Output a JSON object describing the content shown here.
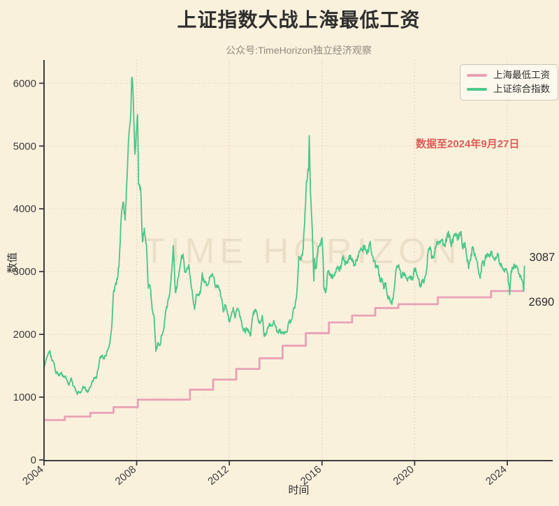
{
  "chart_data": {
    "type": "line",
    "title": "上证指数大战上海最低工资",
    "subtitle": "公众号:TimeHorizon独立经济观察",
    "xlabel": "时间",
    "ylabel": "数值",
    "x_ticks": [
      2004,
      2008,
      2012,
      2016,
      2020,
      2024
    ],
    "y_ticks": [
      0,
      1000,
      2000,
      3000,
      4000,
      5000,
      6000
    ],
    "xlim": [
      2004,
      2026
    ],
    "ylim": [
      0,
      6350
    ],
    "grid": "dotted",
    "legend_position": "upper right",
    "annotation": "数据至2024年9月27日",
    "watermark": "TIME HORIZON",
    "end_labels": {
      "index": "3087",
      "wage": "2690"
    },
    "series": [
      {
        "id": "wage",
        "name": "上海最低工资",
        "style": "step-after",
        "color": "#e8a1b4",
        "points": [
          [
            2004.0,
            635
          ],
          [
            2004.9,
            690
          ],
          [
            2006.0,
            750
          ],
          [
            2007.0,
            840
          ],
          [
            2008.05,
            960
          ],
          [
            2010.3,
            1120
          ],
          [
            2011.3,
            1280
          ],
          [
            2012.3,
            1450
          ],
          [
            2013.3,
            1620
          ],
          [
            2014.3,
            1820
          ],
          [
            2015.3,
            2020
          ],
          [
            2016.3,
            2190
          ],
          [
            2017.3,
            2300
          ],
          [
            2018.3,
            2420
          ],
          [
            2019.3,
            2480
          ],
          [
            2021.0,
            2590
          ],
          [
            2023.3,
            2690
          ],
          [
            2024.74,
            2690
          ]
        ]
      },
      {
        "id": "index",
        "name": "上证综合指数",
        "style": "line",
        "color": "#4dc88b",
        "points": [
          [
            2004.0,
            1497
          ],
          [
            2004.08,
            1590
          ],
          [
            2004.17,
            1675
          ],
          [
            2004.25,
            1741
          ],
          [
            2004.33,
            1595
          ],
          [
            2004.42,
            1555
          ],
          [
            2004.5,
            1399
          ],
          [
            2004.58,
            1386
          ],
          [
            2004.67,
            1342
          ],
          [
            2004.75,
            1396
          ],
          [
            2004.83,
            1320
          ],
          [
            2004.92,
            1340
          ],
          [
            2005.0,
            1266
          ],
          [
            2005.08,
            1191
          ],
          [
            2005.17,
            1306
          ],
          [
            2005.25,
            1181
          ],
          [
            2005.33,
            1159
          ],
          [
            2005.42,
            1060
          ],
          [
            2005.5,
            1080
          ],
          [
            2005.58,
            1083
          ],
          [
            2005.67,
            1162
          ],
          [
            2005.75,
            1155
          ],
          [
            2005.83,
            1092
          ],
          [
            2005.92,
            1099
          ],
          [
            2006.0,
            1161
          ],
          [
            2006.08,
            1258
          ],
          [
            2006.17,
            1299
          ],
          [
            2006.25,
            1298
          ],
          [
            2006.33,
            1440
          ],
          [
            2006.42,
            1641
          ],
          [
            2006.5,
            1672
          ],
          [
            2006.58,
            1612
          ],
          [
            2006.67,
            1658
          ],
          [
            2006.75,
            1752
          ],
          [
            2006.83,
            1837
          ],
          [
            2006.92,
            2099
          ],
          [
            2007.0,
            2675
          ],
          [
            2007.08,
            2786
          ],
          [
            2007.17,
            2881
          ],
          [
            2007.25,
            3183
          ],
          [
            2007.33,
            3841
          ],
          [
            2007.42,
            4109
          ],
          [
            2007.5,
            3820
          ],
          [
            2007.58,
            4471
          ],
          [
            2007.67,
            5218
          ],
          [
            2007.75,
            5552
          ],
          [
            2007.79,
            6092
          ],
          [
            2007.83,
            5954
          ],
          [
            2007.92,
            4871
          ],
          [
            2008.0,
            5262
          ],
          [
            2008.04,
            5500
          ],
          [
            2008.08,
            4383
          ],
          [
            2008.17,
            4348
          ],
          [
            2008.25,
            3473
          ],
          [
            2008.33,
            3693
          ],
          [
            2008.42,
            3433
          ],
          [
            2008.5,
            2736
          ],
          [
            2008.58,
            2775
          ],
          [
            2008.67,
            2397
          ],
          [
            2008.75,
            2294
          ],
          [
            2008.83,
            1729
          ],
          [
            2008.92,
            1871
          ],
          [
            2009.0,
            1821
          ],
          [
            2009.08,
            1991
          ],
          [
            2009.17,
            2083
          ],
          [
            2009.25,
            2373
          ],
          [
            2009.33,
            2478
          ],
          [
            2009.42,
            2633
          ],
          [
            2009.5,
            2959
          ],
          [
            2009.58,
            3412
          ],
          [
            2009.67,
            2668
          ],
          [
            2009.75,
            2779
          ],
          [
            2009.83,
            2995
          ],
          [
            2009.92,
            3195
          ],
          [
            2010.0,
            3277
          ],
          [
            2010.08,
            2989
          ],
          [
            2010.17,
            3052
          ],
          [
            2010.25,
            3109
          ],
          [
            2010.33,
            2871
          ],
          [
            2010.42,
            2592
          ],
          [
            2010.5,
            2398
          ],
          [
            2010.58,
            2638
          ],
          [
            2010.67,
            2639
          ],
          [
            2010.75,
            2656
          ],
          [
            2010.83,
            2979
          ],
          [
            2010.92,
            2820
          ],
          [
            2011.0,
            2808
          ],
          [
            2011.08,
            2790
          ],
          [
            2011.17,
            2905
          ],
          [
            2011.25,
            2928
          ],
          [
            2011.33,
            2911
          ],
          [
            2011.42,
            2743
          ],
          [
            2011.5,
            2762
          ],
          [
            2011.58,
            2701
          ],
          [
            2011.67,
            2567
          ],
          [
            2011.75,
            2359
          ],
          [
            2011.83,
            2468
          ],
          [
            2011.92,
            2333
          ],
          [
            2012.0,
            2199
          ],
          [
            2012.08,
            2293
          ],
          [
            2012.17,
            2428
          ],
          [
            2012.25,
            2263
          ],
          [
            2012.33,
            2396
          ],
          [
            2012.42,
            2372
          ],
          [
            2012.5,
            2225
          ],
          [
            2012.58,
            2103
          ],
          [
            2012.67,
            2047
          ],
          [
            2012.75,
            2086
          ],
          [
            2012.83,
            2068
          ],
          [
            2012.92,
            1980
          ],
          [
            2013.0,
            2269
          ],
          [
            2013.08,
            2385
          ],
          [
            2013.17,
            2365
          ],
          [
            2013.25,
            2237
          ],
          [
            2013.33,
            2178
          ],
          [
            2013.42,
            2301
          ],
          [
            2013.5,
            1979
          ],
          [
            2013.58,
            1994
          ],
          [
            2013.67,
            2098
          ],
          [
            2013.75,
            2175
          ],
          [
            2013.83,
            2141
          ],
          [
            2013.92,
            2221
          ],
          [
            2014.0,
            2116
          ],
          [
            2014.08,
            2033
          ],
          [
            2014.17,
            2056
          ],
          [
            2014.25,
            2033
          ],
          [
            2014.33,
            2026
          ],
          [
            2014.42,
            2039
          ],
          [
            2014.5,
            2048
          ],
          [
            2014.58,
            2202
          ],
          [
            2014.67,
            2217
          ],
          [
            2014.75,
            2364
          ],
          [
            2014.83,
            2420
          ],
          [
            2014.92,
            2683
          ],
          [
            2015.0,
            3235
          ],
          [
            2015.08,
            3210
          ],
          [
            2015.17,
            3310
          ],
          [
            2015.25,
            3748
          ],
          [
            2015.33,
            4442
          ],
          [
            2015.42,
            4612
          ],
          [
            2015.45,
            5166
          ],
          [
            2015.5,
            4277
          ],
          [
            2015.58,
            3664
          ],
          [
            2015.65,
            2851
          ],
          [
            2015.67,
            3206
          ],
          [
            2015.75,
            3053
          ],
          [
            2015.83,
            3383
          ],
          [
            2015.92,
            3445
          ],
          [
            2016.0,
            3539
          ],
          [
            2016.04,
            3296
          ],
          [
            2016.08,
            2738
          ],
          [
            2016.17,
            2688
          ],
          [
            2016.25,
            3004
          ],
          [
            2016.33,
            2938
          ],
          [
            2016.42,
            2917
          ],
          [
            2016.5,
            2930
          ],
          [
            2016.58,
            2979
          ],
          [
            2016.67,
            3085
          ],
          [
            2016.75,
            3005
          ],
          [
            2016.83,
            3100
          ],
          [
            2016.92,
            3250
          ],
          [
            2017.0,
            3104
          ],
          [
            2017.08,
            3159
          ],
          [
            2017.17,
            3242
          ],
          [
            2017.25,
            3223
          ],
          [
            2017.33,
            3155
          ],
          [
            2017.42,
            3117
          ],
          [
            2017.5,
            3192
          ],
          [
            2017.58,
            3273
          ],
          [
            2017.67,
            3361
          ],
          [
            2017.75,
            3349
          ],
          [
            2017.83,
            3393
          ],
          [
            2017.92,
            3317
          ],
          [
            2018.0,
            3307
          ],
          [
            2018.08,
            3481
          ],
          [
            2018.17,
            3259
          ],
          [
            2018.25,
            3169
          ],
          [
            2018.33,
            3082
          ],
          [
            2018.42,
            3095
          ],
          [
            2018.5,
            2847
          ],
          [
            2018.58,
            2876
          ],
          [
            2018.67,
            2725
          ],
          [
            2018.75,
            2821
          ],
          [
            2018.83,
            2603
          ],
          [
            2018.92,
            2588
          ],
          [
            2019.0,
            2494
          ],
          [
            2019.08,
            2585
          ],
          [
            2019.17,
            2941
          ],
          [
            2019.25,
            3091
          ],
          [
            2019.33,
            3078
          ],
          [
            2019.42,
            2899
          ],
          [
            2019.5,
            2979
          ],
          [
            2019.58,
            2933
          ],
          [
            2019.67,
            2886
          ],
          [
            2019.75,
            2905
          ],
          [
            2019.83,
            2929
          ],
          [
            2019.92,
            2872
          ],
          [
            2020.0,
            3050
          ],
          [
            2020.08,
            2977
          ],
          [
            2020.17,
            2880
          ],
          [
            2020.25,
            2750
          ],
          [
            2020.33,
            2860
          ],
          [
            2020.42,
            2852
          ],
          [
            2020.5,
            2985
          ],
          [
            2020.58,
            3310
          ],
          [
            2020.67,
            3396
          ],
          [
            2020.75,
            3218
          ],
          [
            2020.83,
            3225
          ],
          [
            2020.92,
            3392
          ],
          [
            2021.0,
            3473
          ],
          [
            2021.08,
            3483
          ],
          [
            2021.17,
            3509
          ],
          [
            2021.25,
            3442
          ],
          [
            2021.33,
            3447
          ],
          [
            2021.42,
            3615
          ],
          [
            2021.5,
            3591
          ],
          [
            2021.58,
            3397
          ],
          [
            2021.67,
            3544
          ],
          [
            2021.75,
            3568
          ],
          [
            2021.83,
            3547
          ],
          [
            2021.92,
            3564
          ],
          [
            2022.0,
            3640
          ],
          [
            2022.08,
            3361
          ],
          [
            2022.17,
            3462
          ],
          [
            2022.25,
            3252
          ],
          [
            2022.33,
            3047
          ],
          [
            2022.42,
            3186
          ],
          [
            2022.5,
            3399
          ],
          [
            2022.58,
            3253
          ],
          [
            2022.67,
            3202
          ],
          [
            2022.75,
            3024
          ],
          [
            2022.83,
            2893
          ],
          [
            2022.92,
            3151
          ],
          [
            2023.0,
            3089
          ],
          [
            2023.08,
            3256
          ],
          [
            2023.17,
            3280
          ],
          [
            2023.25,
            3273
          ],
          [
            2023.33,
            3323
          ],
          [
            2023.42,
            3205
          ],
          [
            2023.5,
            3202
          ],
          [
            2023.58,
            3291
          ],
          [
            2023.67,
            3120
          ],
          [
            2023.75,
            3110
          ],
          [
            2023.83,
            3019
          ],
          [
            2023.92,
            3030
          ],
          [
            2024.0,
            2975
          ],
          [
            2024.08,
            2789
          ],
          [
            2024.1,
            2635
          ],
          [
            2024.17,
            3015
          ],
          [
            2024.25,
            3041
          ],
          [
            2024.33,
            3105
          ],
          [
            2024.42,
            3087
          ],
          [
            2024.5,
            2967
          ],
          [
            2024.58,
            2938
          ],
          [
            2024.67,
            2842
          ],
          [
            2024.71,
            2689
          ],
          [
            2024.74,
            3087
          ]
        ]
      }
    ]
  },
  "colors": {
    "background": "#faf1dd",
    "axis": "#3c3c3c",
    "text": "#2e2e2e",
    "subtitle": "#8f8a7d",
    "annotation": "#d95d55",
    "watermark_color": "rgba(120,95,45,0.12)"
  }
}
